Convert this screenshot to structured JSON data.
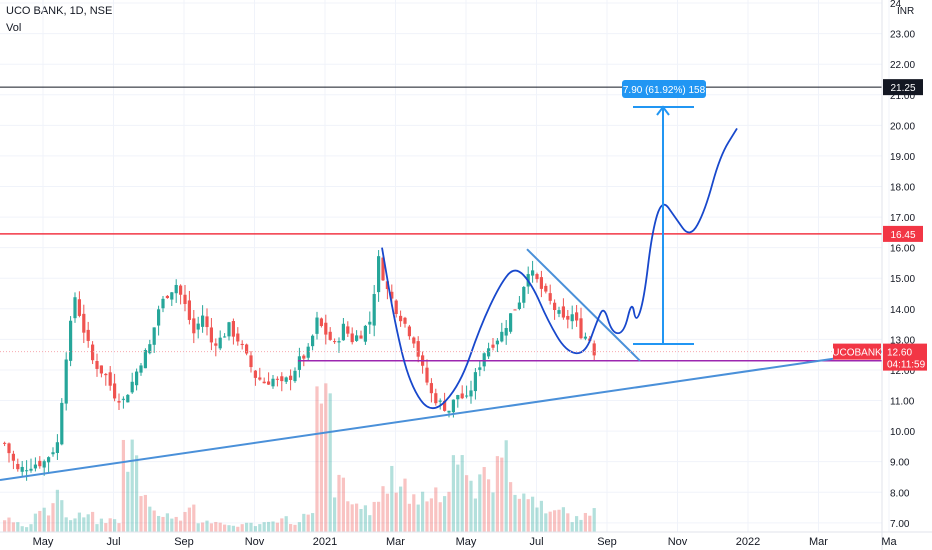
{
  "header": {
    "title": "UCO BANK, 1D, NSE",
    "volume_label": "Vol",
    "currency": "INR"
  },
  "chart_data": {
    "type": "candlestick",
    "symbol": "UCOBANK",
    "exchange": "NSE",
    "interval": "1D",
    "x_tick_labels": [
      "May",
      "Jul",
      "Sep",
      "Nov",
      "2021",
      "Mar",
      "May",
      "Jul",
      "Sep",
      "Nov",
      "2022",
      "Mar",
      "Ma"
    ],
    "y_tick_labels": [
      "7.00",
      "8.00",
      "9.00",
      "10.00",
      "11.00",
      "12.00",
      "13.00",
      "14.00",
      "15.00",
      "16.00",
      "17.00",
      "18.00",
      "19.00",
      "20.00",
      "21.00",
      "22.00",
      "23.00",
      "24"
    ],
    "ylim": [
      6.7,
      24.1
    ],
    "close_path": [
      [
        0,
        9.6
      ],
      [
        3,
        8.7
      ],
      [
        6,
        8.9
      ],
      [
        9,
        9.0
      ],
      [
        12,
        9.6
      ],
      [
        14,
        12.5
      ],
      [
        16,
        14.4
      ],
      [
        18,
        13.3
      ],
      [
        20,
        12.3
      ],
      [
        23,
        11.8
      ],
      [
        25,
        11.2
      ],
      [
        27,
        11.0
      ],
      [
        29,
        11.6
      ],
      [
        31,
        12.3
      ],
      [
        33,
        12.8
      ],
      [
        35,
        14.0
      ],
      [
        37,
        14.5
      ],
      [
        39,
        14.8
      ],
      [
        41,
        14.1
      ],
      [
        43,
        13.2
      ],
      [
        45,
        13.8
      ],
      [
        47,
        12.9
      ],
      [
        49,
        13.0
      ],
      [
        51,
        13.4
      ],
      [
        53,
        13.0
      ],
      [
        55,
        12.4
      ],
      [
        57,
        11.8
      ],
      [
        59,
        11.6
      ],
      [
        61,
        11.7
      ],
      [
        63,
        11.5
      ],
      [
        65,
        11.8
      ],
      [
        67,
        12.3
      ],
      [
        69,
        12.6
      ],
      [
        71,
        13.6
      ],
      [
        73,
        13.2
      ],
      [
        75,
        12.8
      ],
      [
        77,
        13.4
      ],
      [
        79,
        13.0
      ],
      [
        81,
        13.2
      ],
      [
        83,
        13.6
      ],
      [
        85,
        15.6
      ],
      [
        87,
        14.6
      ],
      [
        89,
        14.0
      ],
      [
        91,
        13.5
      ],
      [
        93,
        13.0
      ],
      [
        95,
        12.0
      ],
      [
        97,
        11.2
      ],
      [
        99,
        10.9
      ],
      [
        101,
        10.7
      ],
      [
        103,
        11.2
      ],
      [
        105,
        11.0
      ],
      [
        107,
        11.8
      ],
      [
        109,
        12.6
      ],
      [
        111,
        12.9
      ],
      [
        113,
        13.2
      ],
      [
        115,
        13.8
      ],
      [
        117,
        14.3
      ],
      [
        119,
        15.3
      ],
      [
        121,
        14.9
      ],
      [
        123,
        14.4
      ],
      [
        125,
        14.0
      ],
      [
        127,
        13.6
      ],
      [
        129,
        13.8
      ],
      [
        131,
        13.2
      ],
      [
        133,
        13.0
      ],
      [
        134,
        12.6
      ]
    ],
    "volume_levels": [
      0.1,
      0.05,
      0.15,
      0.3,
      0.1,
      0.12,
      0.08,
      0.09,
      0.6,
      0.25,
      0.15,
      0.1,
      0.2,
      0.08,
      0.06,
      0.05,
      0.06,
      0.07,
      0.1,
      0.07,
      0.12,
      0.95,
      0.35,
      0.22,
      0.18,
      0.3,
      0.4,
      0.25,
      0.28,
      0.32,
      0.6,
      0.35,
      0.4,
      0.7,
      0.3,
      0.25,
      0.2,
      0.15,
      0.1,
      0.15
    ],
    "horizontal_lines": [
      {
        "label": "21.25",
        "price": 21.25,
        "color": "#131722",
        "tag_color": "#131722"
      },
      {
        "label": "16.45",
        "price": 16.45,
        "color": "#f23645",
        "tag_color": "#f23645"
      },
      {
        "label": "12.30",
        "price": 12.3,
        "color": "#9c27b0",
        "tag_color": "#9c27b0"
      }
    ],
    "last_price": {
      "symbol": "UCOBANK",
      "price_label": "12.60",
      "countdown": "04:11:59",
      "price": 12.6,
      "tag_color": "#f23645"
    },
    "measure_label": "7.90 (61.92%) 158",
    "colors": {
      "up": "#26a69a",
      "down": "#ef5350",
      "drawing": "#1848cc",
      "trendline": "#4a90d9",
      "measure": "#2196f3"
    }
  }
}
